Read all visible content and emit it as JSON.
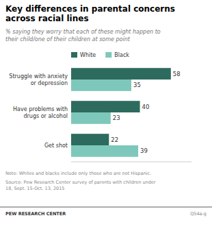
{
  "chart_data": {
    "type": "bar",
    "orientation": "horizontal",
    "title": "Key differences in parental concerns\nacross racial lines",
    "subtitle": "% saying they worry that each of these might happen to\ntheir child/one of their children at some point",
    "categories": [
      "Struggle with anxiety\nor depression",
      "Have problems with\ndrugs or alcohol",
      "Get shot"
    ],
    "series": [
      {
        "name": "White",
        "color": "#2d6b5e",
        "values": [
          58,
          40,
          22
        ]
      },
      {
        "name": "Black",
        "color": "#7ec8bb",
        "values": [
          35,
          23,
          39
        ]
      }
    ],
    "xlim": [
      0,
      70
    ],
    "data_labels": true,
    "tick_labels": "y",
    "grid": false,
    "legend": "top",
    "annotations": [
      "Note: Whites and blacks include only those who are not Hispanic.",
      "Source: Pew Research Center survey of parents with children under\n18, Sept. 15-Oct. 13, 2015",
      "PEW RESEARCH CENTER",
      "Q54a-g"
    ]
  }
}
